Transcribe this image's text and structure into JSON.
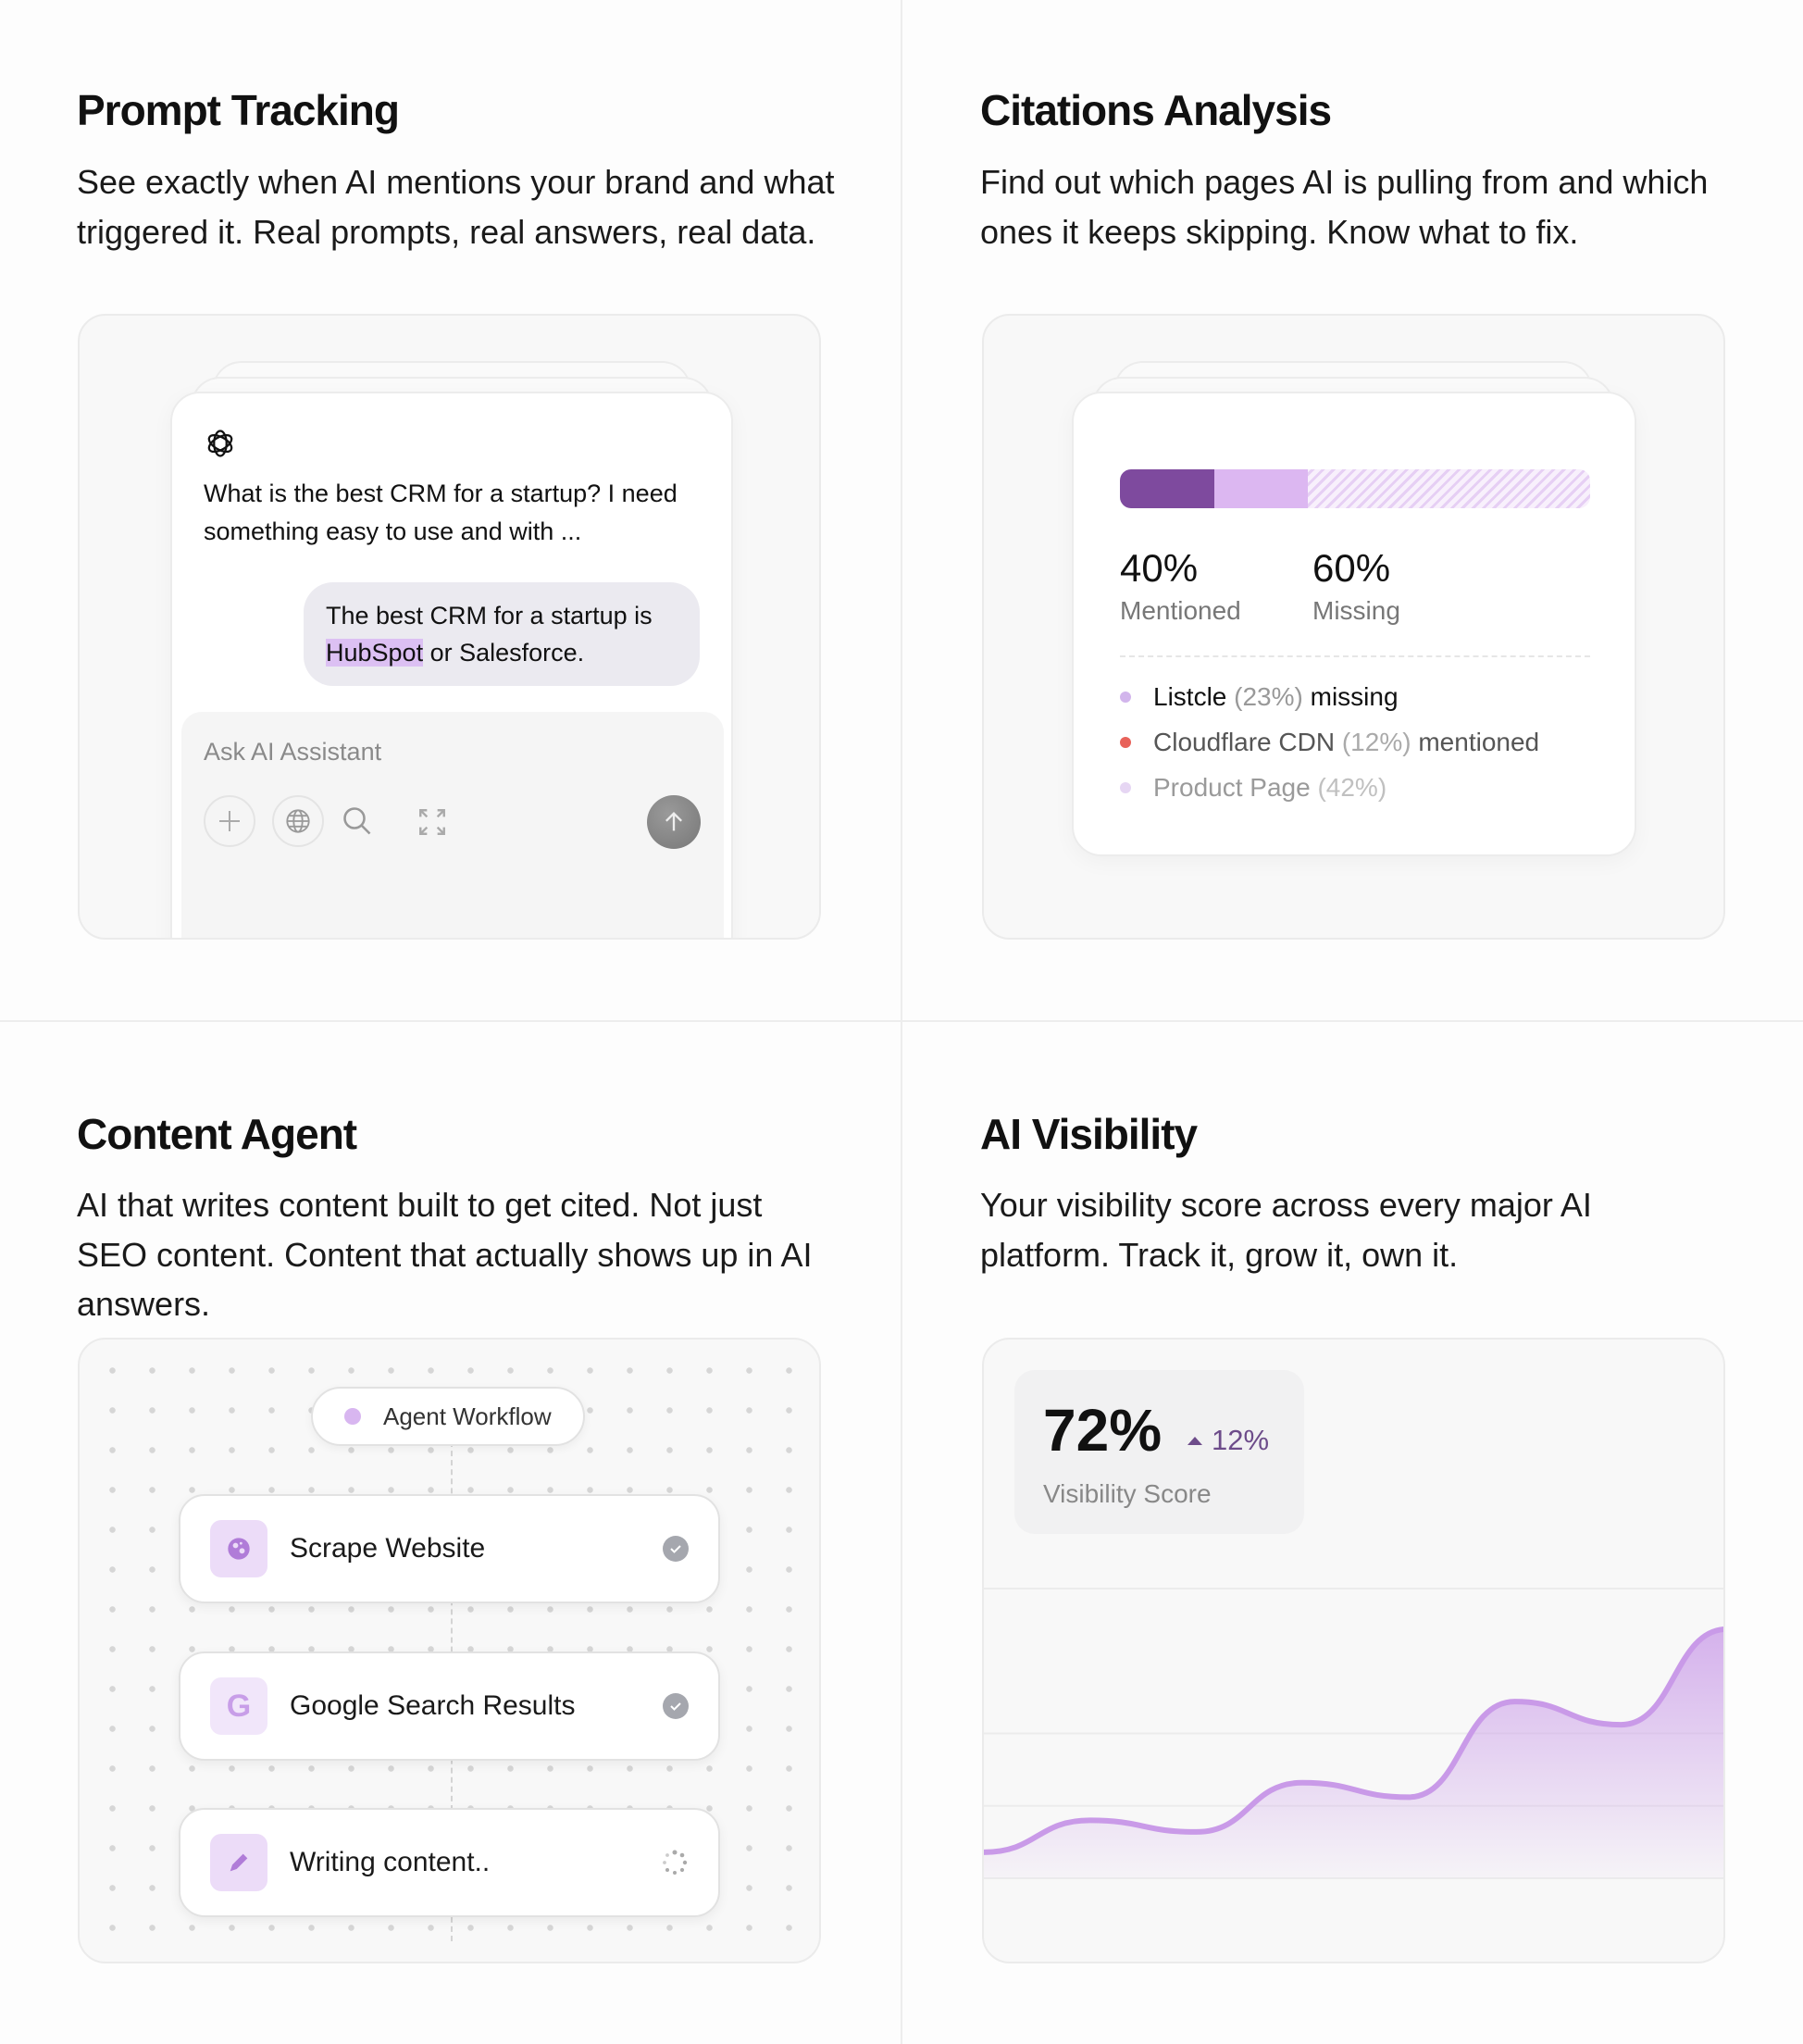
{
  "prompt_tracking": {
    "title": "Prompt Tracking",
    "description": "See exactly when AI mentions your brand and what triggered it. Real prompts, real answers, real data.",
    "question": "What is the best CRM for a startup? I need something easy to use and with ...",
    "answer_before": "The best CRM for a startup is ",
    "answer_highlight": "HubSpot",
    "answer_after": " or Salesforce.",
    "input_placeholder": "Ask AI Assistant",
    "icons": [
      "openai-icon",
      "plus-icon",
      "globe-icon",
      "search-icon",
      "expand-icon",
      "arrow-up-icon"
    ]
  },
  "citations": {
    "title": "Citations Analysis",
    "description": "Find out which pages AI is pulling from and which ones it keeps skipping. Know what to fix.",
    "bar_segments": [
      {
        "fraction": 0.2,
        "color": "#7e4a9e"
      },
      {
        "fraction": 0.2,
        "color": "#dcb7f1"
      },
      {
        "fraction": 0.6,
        "color": "hatched"
      }
    ],
    "stats": [
      {
        "value": "40%",
        "label": "Mentioned"
      },
      {
        "value": "60%",
        "label": "Missing"
      }
    ],
    "items": [
      {
        "name": "Listcle",
        "pct": "(23%)",
        "status": "missing",
        "dot": "#d2b5ec"
      },
      {
        "name": "Cloudflare CDN",
        "pct": "(12%)",
        "status": "mentioned",
        "dot": "#e8625a"
      },
      {
        "name": "Product Page",
        "pct": "(42%)",
        "status": "",
        "dot": "#e6d6f3"
      }
    ]
  },
  "content_agent": {
    "title": "Content Agent",
    "description": "AI that writes content built to get cited. Not just SEO content. Content that actually shows up in AI answers.",
    "workflow_label": "Agent Workflow",
    "steps": [
      {
        "label": "Scrape Website",
        "icon": "globe-icon",
        "status": "done"
      },
      {
        "label": "Google Search Results",
        "icon": "google-icon",
        "status": "done"
      },
      {
        "label": "Writing content..",
        "icon": "pencil-icon",
        "status": "loading"
      }
    ]
  },
  "ai_visibility": {
    "title": "AI Visibility",
    "description": "Your visibility score across every major AI platform. Track it, grow it, own it.",
    "score": "72%",
    "change": "12%",
    "score_label": "Visibility Score",
    "accent": "#c99ae8"
  },
  "chart_data": {
    "type": "area",
    "title": "",
    "xlabel": "",
    "ylabel": "",
    "x": [
      0,
      1,
      2,
      3,
      4,
      5,
      6,
      7
    ],
    "values": [
      9,
      20,
      16,
      33,
      28,
      61,
      53,
      86
    ],
    "ylim": [
      0,
      100
    ],
    "gridlines": [
      0,
      25,
      50,
      100
    ],
    "grid": true,
    "color": "#c99ae8"
  }
}
